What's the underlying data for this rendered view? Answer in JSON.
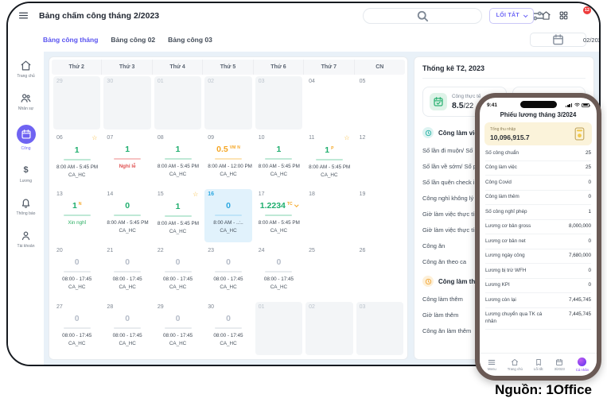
{
  "window": {
    "title": "Bảng chấm công tháng 2/2023",
    "search_placeholder": "Tìm kiếm",
    "shortcut_button": "LỐI TẮT",
    "notification_count": "12"
  },
  "tabs": {
    "items": [
      {
        "label": "Bảng công tháng",
        "active": true
      },
      {
        "label": "Bảng công 02",
        "active": false
      },
      {
        "label": "Bảng công 03",
        "active": false
      }
    ],
    "month_select": "02/2023"
  },
  "sidebar": {
    "items": [
      {
        "label": "Trang chủ",
        "icon": "home-icon",
        "active": false
      },
      {
        "label": "Nhân sự",
        "icon": "people-icon",
        "active": false
      },
      {
        "label": "Công",
        "icon": "calendar-icon",
        "active": true
      },
      {
        "label": "Lương",
        "icon": "dollar-icon",
        "active": false
      },
      {
        "label": "Thông báo",
        "icon": "bell-icon",
        "active": false
      },
      {
        "label": "Tài khoản",
        "icon": "user-icon",
        "active": false
      }
    ]
  },
  "calendar": {
    "weekdays": [
      "Thứ 2",
      "Thứ 3",
      "Thứ 4",
      "Thứ 5",
      "Thứ 6",
      "Thứ 7",
      "CN"
    ],
    "weeks": [
      [
        {
          "d": "29",
          "muted": true
        },
        {
          "d": "30",
          "muted": true
        },
        {
          "d": "01",
          "muted": true
        },
        {
          "d": "02",
          "muted": true
        },
        {
          "d": "03",
          "muted": true
        },
        {
          "d": "04"
        },
        {
          "d": "05"
        }
      ],
      [
        {
          "d": "06",
          "star": true,
          "v": "1",
          "vc": "green",
          "u": "green",
          "l1": "8:00 AM - 5:45 PM",
          "l2": "CA_HC"
        },
        {
          "d": "07",
          "v": "1",
          "vc": "green",
          "u": "red",
          "l1": "Nghỉ lễ",
          "l1c": "red"
        },
        {
          "d": "08",
          "v": "1",
          "vc": "green",
          "u": "green",
          "l1": "8:00 AM - 5:45 PM",
          "l2": "CA_HC"
        },
        {
          "d": "09",
          "v": "0.5",
          "vc": "orange",
          "badges": [
            "VM",
            "N"
          ],
          "u": "orange",
          "l1": "8:00 AM - 12:00 PM",
          "l2": "CA_HC"
        },
        {
          "d": "10",
          "v": "1",
          "vc": "green",
          "u": "green",
          "l1": "8:00 AM - 5:45 PM",
          "l2": "CA_HC"
        },
        {
          "d": "11",
          "star": true,
          "v": "1",
          "vc": "green",
          "badges": [
            "P"
          ],
          "u": "green",
          "l1": "8:00 AM - 5:45 PM",
          "l2": "CA_HC"
        },
        {
          "d": "12"
        }
      ],
      [
        {
          "d": "13",
          "v": "1",
          "vc": "green",
          "badges": [
            "N"
          ],
          "u": "green",
          "l1": "Xin nghỉ",
          "l1c": "green"
        },
        {
          "d": "14",
          "v": "0",
          "vc": "green",
          "u": "green",
          "l1": "8:00 AM - 5:45 PM",
          "l2": "CA_HC"
        },
        {
          "d": "15",
          "star": true,
          "v": "1",
          "vc": "green",
          "u": "green",
          "l1": "8:00 AM - 5:45 PM",
          "l2": "CA_HC"
        },
        {
          "d": "16",
          "today": true,
          "v": "0",
          "vc": "blue",
          "u": "blue",
          "l1": "8:00 AM - ..:..",
          "l2": "CA_HC"
        },
        {
          "d": "17",
          "v": "1.2234",
          "vc": "green",
          "badges": [
            "TC"
          ],
          "caret": true,
          "u": "green",
          "l1": "8:00 AM - 5:45 PM",
          "l2": "CA_HC"
        },
        {
          "d": "18"
        },
        {
          "d": "19"
        }
      ],
      [
        {
          "d": "20",
          "v": "0",
          "vc": "gray",
          "u": "gray",
          "l1": "08:00 - 17:45",
          "l2": "CA_HC"
        },
        {
          "d": "21",
          "v": "0",
          "vc": "gray",
          "u": "gray",
          "l1": "08:00 - 17:45",
          "l2": "CA_HC"
        },
        {
          "d": "22",
          "v": "0",
          "vc": "gray",
          "u": "gray",
          "l1": "08:00 - 17:45",
          "l2": "CA_HC"
        },
        {
          "d": "23",
          "v": "0",
          "vc": "gray",
          "u": "gray",
          "l1": "08:00 - 17:45",
          "l2": "CA_HC"
        },
        {
          "d": "24",
          "v": "0",
          "vc": "gray",
          "u": "gray",
          "l1": "08:00 - 17:45",
          "l2": "CA_HC"
        },
        {
          "d": "25"
        },
        {
          "d": "26"
        }
      ],
      [
        {
          "d": "27",
          "v": "0",
          "vc": "gray",
          "u": "gray",
          "l1": "08:00 - 17:45",
          "l2": "CA_HC"
        },
        {
          "d": "28",
          "v": "0",
          "vc": "gray",
          "u": "gray",
          "l1": "08:00 - 17:45",
          "l2": "CA_HC"
        },
        {
          "d": "29",
          "v": "0",
          "vc": "gray",
          "u": "gray",
          "l1": "08:00 - 17:45",
          "l2": "CA_HC"
        },
        {
          "d": "30",
          "v": "0",
          "vc": "gray",
          "u": "gray",
          "l1": "08:00 - 17:45",
          "l2": "CA_HC"
        },
        {
          "d": "01",
          "muted": true
        },
        {
          "d": "02",
          "muted": true
        },
        {
          "d": "03",
          "muted": true
        }
      ]
    ]
  },
  "stats": {
    "title": "Thống kê T2, 2023",
    "card": {
      "label": "Công thực tế",
      "value": "8.5",
      "total": "/22"
    },
    "sections": [
      {
        "title": "Công làm việc",
        "icon": "clock-icon",
        "color": "teal",
        "items": [
          "Số lần đi muộn/ Số phút đi muộn",
          "Số lần về sớm/ Số phút về sớm",
          "Số lần quên check in/out",
          "Công nghỉ không lý do",
          "Giờ làm việc thực tính ban ngày",
          "Giờ làm việc thực tính ban đêm",
          "Công ăn",
          "Công ăn theo ca"
        ]
      },
      {
        "title": "Công làm thêm",
        "icon": "clock-icon",
        "color": "orange",
        "items": [
          "Công làm thêm",
          "Giờ làm thêm",
          "Công ăn làm thêm"
        ]
      }
    ]
  },
  "phone": {
    "status_time": "9:41",
    "title": "Phiếu lương tháng 3/2024",
    "summary_card": {
      "label": "Tổng thu nhập",
      "value": "10,096,915.7"
    },
    "rows": [
      {
        "label": "Số công chuẩn",
        "value": "25"
      },
      {
        "label": "Công làm việc",
        "value": "25"
      },
      {
        "label": "Công Covid",
        "value": "0"
      },
      {
        "label": "Công làm thêm",
        "value": "0"
      },
      {
        "label": "Số công nghỉ phép",
        "value": "1"
      },
      {
        "label": "Lương cơ bản gross",
        "value": "8,000,000"
      },
      {
        "label": "Lương cơ bản net",
        "value": "0"
      },
      {
        "label": "Lương ngày công",
        "value": "7,680,000"
      },
      {
        "label": "Lương bị trừ WFH",
        "value": "0"
      },
      {
        "label": "Lương KPI",
        "value": "0"
      },
      {
        "label": "Lương còn lại",
        "value": "7,445,745"
      },
      {
        "label": "Lương chuyển qua TK cá nhân",
        "value": "7,445,745"
      }
    ],
    "tabbar": [
      {
        "label": "Menu",
        "icon": "menu-icon",
        "active": false
      },
      {
        "label": "Trang chủ",
        "icon": "home-icon",
        "active": false
      },
      {
        "label": "Lối tắt",
        "icon": "bookmark-icon",
        "active": false
      },
      {
        "label": "3/2023",
        "icon": "calendar-icon",
        "active": false
      },
      {
        "label": "Cá nhân",
        "icon": "avatar",
        "active": true
      }
    ]
  },
  "caption": "Nguồn: 1Office",
  "colors": {
    "accent": "#5a54f0",
    "green": "#1fae6e",
    "orange": "#f5a623",
    "red": "#e05252",
    "blue": "#2ba7e0",
    "badge_red": "#ee3b3b",
    "phone_frame": "#6a5a55"
  }
}
